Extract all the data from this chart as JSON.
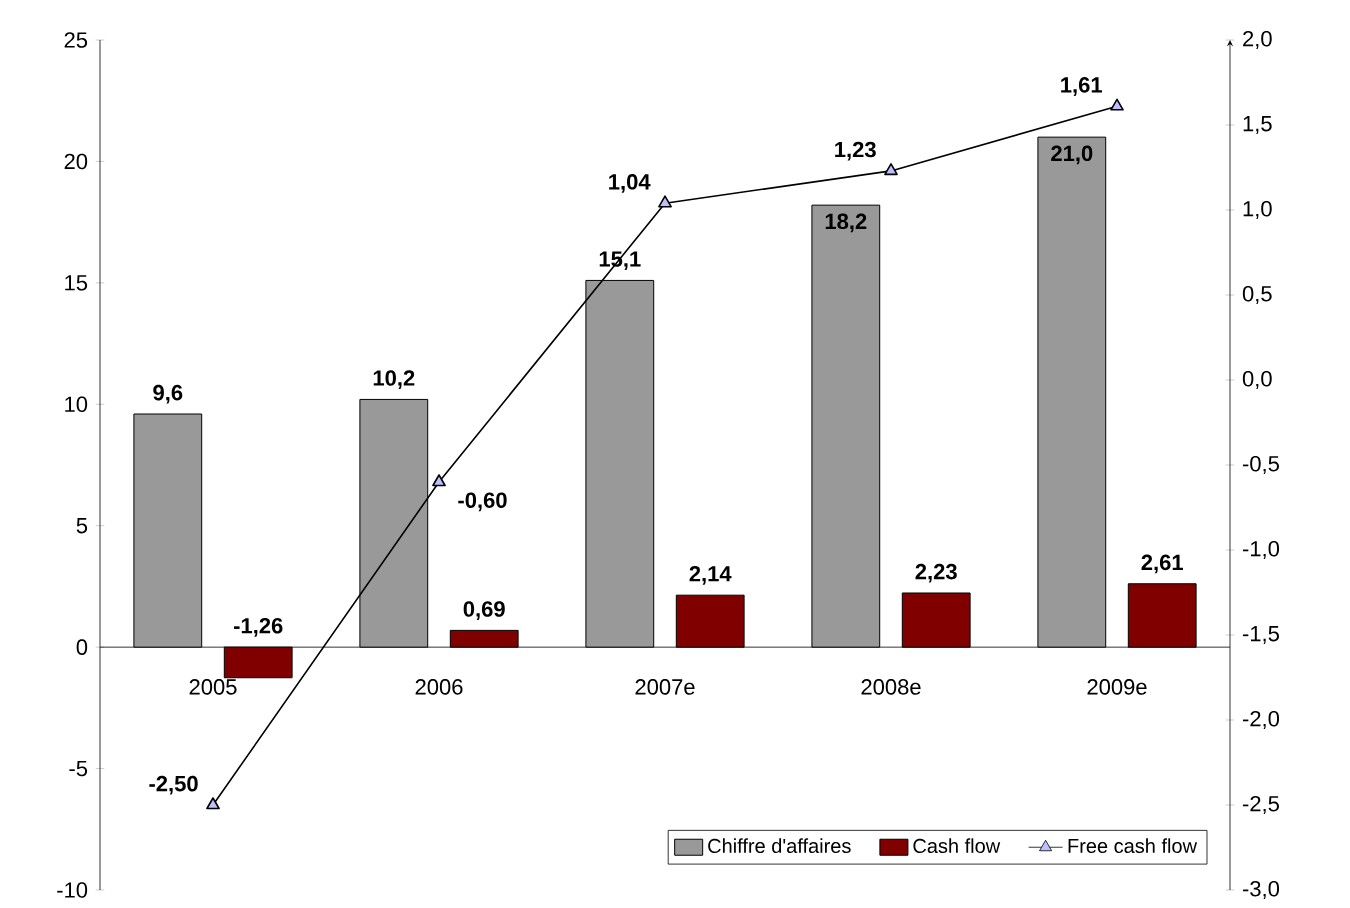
{
  "chart_data": {
    "type": "bar",
    "categories": [
      "2005",
      "2006",
      "2007e",
      "2008e",
      "2009e"
    ],
    "series": [
      {
        "name": "Chiffre d'affaires",
        "color": "#999999",
        "values": [
          9.6,
          10.2,
          15.1,
          18.2,
          21.0
        ],
        "value_labels": [
          "9,6",
          "10,2",
          "15,1",
          "18,2",
          "21,0"
        ]
      },
      {
        "name": "Cash flow",
        "color": "#800000",
        "values": [
          -1.26,
          0.69,
          2.14,
          2.23,
          2.61
        ],
        "value_labels": [
          "-1,26",
          "0,69",
          "2,14",
          "2,23",
          "2,61"
        ]
      },
      {
        "name": "Free cash flow",
        "type": "line",
        "axis": "y2",
        "color": "#000000",
        "marker": "triangle",
        "values": [
          -2.5,
          -0.6,
          1.04,
          1.23,
          1.61
        ],
        "value_labels": [
          "-2,50",
          "-0,60",
          "1,04",
          "1,23",
          "1,61"
        ]
      }
    ],
    "ylim": [
      -10,
      25
    ],
    "yticks": [
      -10,
      -5,
      0,
      5,
      10,
      15,
      20,
      25
    ],
    "y2lim": [
      -3,
      2
    ],
    "y2ticks": [
      {
        "value": -3,
        "label": "-3,0"
      },
      {
        "value": -2.5,
        "label": "-2,5"
      },
      {
        "value": -2,
        "label": "-2,0"
      },
      {
        "value": -1.5,
        "label": "-1,5"
      },
      {
        "value": -1,
        "label": "-1,0"
      },
      {
        "value": -0.5,
        "label": "-0,5"
      },
      {
        "value": 0,
        "label": "0,0"
      },
      {
        "value": 0.5,
        "label": "0,5"
      },
      {
        "value": 1,
        "label": "1,0"
      },
      {
        "value": 1.5,
        "label": "1,5"
      },
      {
        "value": 2,
        "label": "2,0"
      }
    ],
    "legend": "bottom right"
  }
}
